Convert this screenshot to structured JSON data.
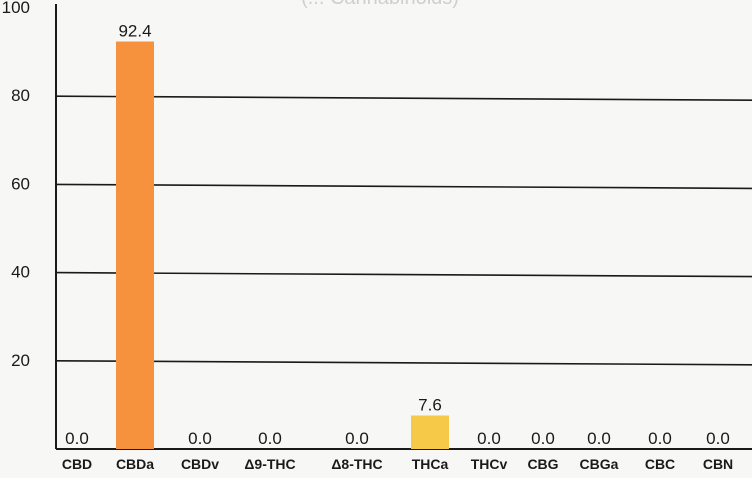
{
  "chart_data": {
    "type": "bar",
    "title_partial": "(... Cannabinoids)",
    "categories": [
      "CBD",
      "CBDa",
      "CBDv",
      "Δ9-THC",
      "Δ8-THC",
      "THCa",
      "THCv",
      "CBG",
      "CBGa",
      "CBC",
      "CBN"
    ],
    "values": [
      0.0,
      92.4,
      0.0,
      0.0,
      0.0,
      7.6,
      0.0,
      0.0,
      0.0,
      0.0,
      0.0
    ],
    "value_labels": [
      "0.0",
      "92.4",
      "0.0",
      "0.0",
      "0.0",
      "7.6",
      "0.0",
      "0.0",
      "0.0",
      "0.0",
      "0.0"
    ],
    "y_ticks": [
      20,
      40,
      60,
      80,
      100
    ],
    "ylim": [
      0,
      100
    ],
    "grid": true,
    "bar_colors": {
      "CBDa": "#f6923e",
      "THCa": "#f7c948",
      "default": "#f6923e"
    },
    "colors": {
      "grid": "#1a1a1a",
      "text": "#1a1a1a",
      "background": "#f7f7f5"
    }
  }
}
